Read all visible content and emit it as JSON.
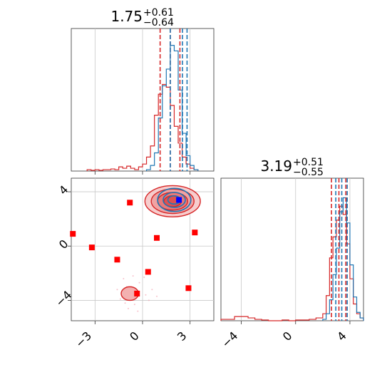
{
  "chart_data": [
    {
      "type": "histogram",
      "title": {
        "median": "1.75",
        "plus": "+0.61",
        "minus": "−0.64"
      },
      "xlim": [
        -4.5,
        4.5
      ],
      "ylim": [
        0,
        1
      ],
      "grid": true,
      "tick_values": [
        -3,
        0,
        3
      ],
      "series": [
        {
          "color": "#d62728",
          "bin_edges": [
            -3.5,
            -3.25,
            -3.0,
            -2.75,
            -2.5,
            -2.25,
            -2.0,
            -1.75,
            -1.5,
            -1.25,
            -1.0,
            -0.75,
            -0.5,
            -0.25,
            0.0,
            0.25,
            0.5,
            0.75,
            1.0,
            1.25,
            1.5,
            1.75,
            2.0,
            2.25,
            2.5,
            2.75,
            3.0,
            3.25,
            3.5
          ],
          "counts": [
            0.01,
            0.005,
            0.01,
            0.005,
            0.01,
            0.01,
            0.015,
            0.01,
            0.03,
            0.02,
            0.035,
            0.02,
            0.01,
            0.03,
            0.05,
            0.1,
            0.18,
            0.4,
            0.55,
            0.62,
            0.6,
            0.47,
            0.32,
            0.2,
            0.1,
            0.05,
            0.02,
            0.01
          ],
          "quantiles": [
            1.11,
            1.75,
            2.36
          ]
        },
        {
          "color": "#1f77b4",
          "bin_edges": [
            0.25,
            0.5,
            0.75,
            1.0,
            1.25,
            1.5,
            1.75,
            2.0,
            2.25,
            2.5,
            2.75,
            3.0,
            3.25,
            3.5
          ],
          "counts": [
            0.01,
            0.04,
            0.13,
            0.38,
            0.61,
            0.73,
            0.9,
            0.86,
            0.58,
            0.27,
            0.11,
            0.04,
            0.01
          ],
          "quantiles": [
            1.75,
            2.52,
            2.81
          ]
        }
      ]
    },
    {
      "type": "scatter-contour",
      "xlim": [
        -4.5,
        4.5
      ],
      "ylim": [
        -5.5,
        5
      ],
      "grid": true,
      "x_tick_values": [
        -3,
        0,
        3
      ],
      "y_tick_values": [
        -4,
        0,
        4
      ],
      "markers": [
        {
          "x": -4.4,
          "y": 0.9,
          "color": "#ff0000"
        },
        {
          "x": -3.2,
          "y": -0.1,
          "color": "#ff0000"
        },
        {
          "x": -1.6,
          "y": -1.0,
          "color": "#ff0000"
        },
        {
          "x": -0.8,
          "y": 3.2,
          "color": "#ff0000"
        },
        {
          "x": 0.9,
          "y": 0.6,
          "color": "#ff0000"
        },
        {
          "x": 0.35,
          "y": -1.9,
          "color": "#ff0000"
        },
        {
          "x": -0.35,
          "y": -3.5,
          "color": "#ff0000"
        },
        {
          "x": 2.9,
          "y": -3.1,
          "color": "#ff0000"
        },
        {
          "x": 3.3,
          "y": 1.0,
          "color": "#ff0000"
        },
        {
          "x": 2.3,
          "y": 3.4,
          "color": "#0000ff"
        }
      ],
      "red_contours": [
        {
          "cx": 1.9,
          "cy": 3.3,
          "rx": 1.75,
          "ry": 1.15
        },
        {
          "cx": 1.9,
          "cy": 3.3,
          "rx": 1.35,
          "ry": 0.9
        },
        {
          "cx": 1.9,
          "cy": 3.3,
          "rx": 0.95,
          "ry": 0.65
        },
        {
          "cx": 1.9,
          "cy": 3.3,
          "rx": 0.55,
          "ry": 0.4
        },
        {
          "cx": -0.8,
          "cy": -3.5,
          "rx": 0.55,
          "ry": 0.5
        }
      ],
      "blue_contours": [
        {
          "cx": 2.0,
          "cy": 3.4,
          "rx": 1.05,
          "ry": 0.85
        },
        {
          "cx": 2.0,
          "cy": 3.4,
          "rx": 0.7,
          "ry": 0.55
        },
        {
          "cx": 2.0,
          "cy": 3.4,
          "rx": 0.4,
          "ry": 0.3
        }
      ]
    },
    {
      "type": "histogram",
      "title": {
        "median": "3.19",
        "plus": "+0.51",
        "minus": "−0.55"
      },
      "xlim": [
        -5.5,
        5
      ],
      "ylim": [
        0,
        1
      ],
      "grid": true,
      "tick_values": [
        -4,
        0,
        4
      ],
      "series": [
        {
          "color": "#d62728",
          "bin_edges": [
            -5.5,
            -5.0,
            -4.5,
            -4.0,
            -3.5,
            -3.0,
            -2.5,
            -2.0,
            -1.5,
            -1.0,
            -0.5,
            0.0,
            0.5,
            1.0,
            1.5,
            2.0,
            2.25,
            2.5,
            2.75,
            3.0,
            3.25,
            3.5,
            3.75,
            4.0,
            4.25,
            4.5,
            4.75,
            5.0
          ],
          "counts": [
            0.01,
            0.01,
            0.03,
            0.03,
            0.02,
            0.01,
            0.005,
            0.0,
            0.0,
            0.005,
            0.0,
            0.005,
            0.005,
            0.01,
            0.02,
            0.05,
            0.18,
            0.45,
            0.6,
            0.72,
            0.82,
            0.76,
            0.55,
            0.3,
            0.12,
            0.05,
            0.02
          ],
          "quantiles": [
            2.64,
            3.19,
            3.7
          ]
        },
        {
          "color": "#1f77b4",
          "bin_edges": [
            2.0,
            2.25,
            2.5,
            2.75,
            3.0,
            3.25,
            3.5,
            3.75,
            4.0,
            4.25,
            4.5,
            4.75,
            5.0
          ],
          "counts": [
            0.01,
            0.05,
            0.15,
            0.33,
            0.52,
            0.78,
            0.88,
            0.7,
            0.4,
            0.17,
            0.06,
            0.02
          ],
          "quantiles": [
            2.96,
            3.4,
            3.8
          ]
        }
      ]
    }
  ]
}
